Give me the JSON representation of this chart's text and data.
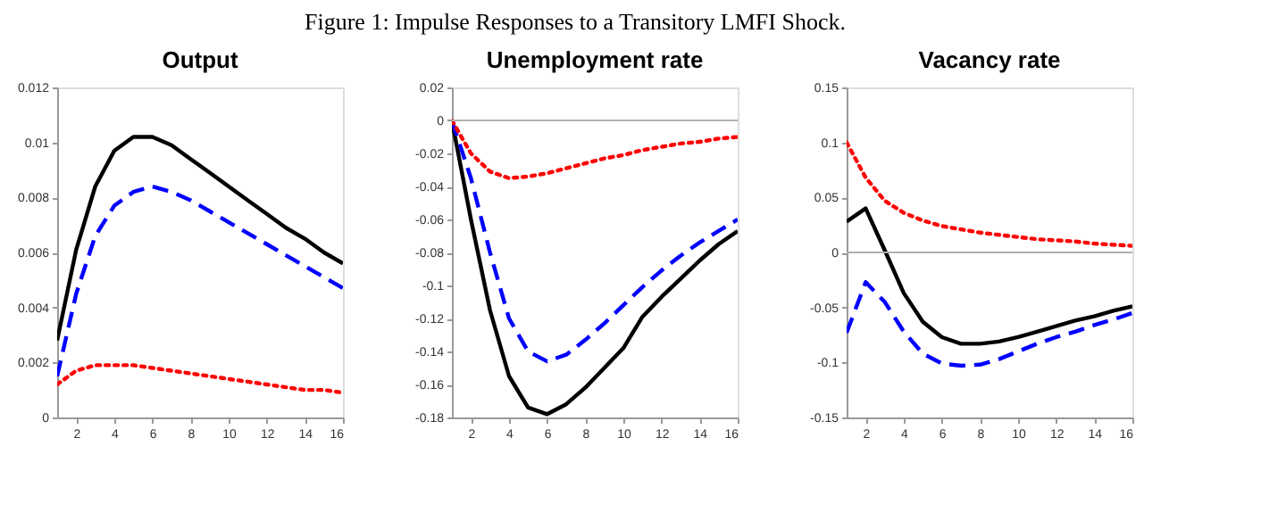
{
  "chart_data": [
    {
      "type": "line",
      "title": "Output",
      "annotations": [
        "Figure 1: Impulse Responses to a Transitory LMFI Shock."
      ],
      "x": [
        1,
        2,
        3,
        4,
        5,
        6,
        7,
        8,
        9,
        10,
        11,
        12,
        13,
        14,
        15,
        16
      ],
      "xlim": [
        1,
        16
      ],
      "xticks": [
        2,
        4,
        6,
        8,
        10,
        12,
        14,
        16
      ],
      "ylim": [
        0,
        0.012
      ],
      "yticks": [
        0,
        0.002,
        0.004,
        0.006,
        0.008,
        0.01,
        0.012
      ],
      "series": [
        {
          "color": "#000000",
          "line_style": "solid",
          "values": [
            0.0028,
            0.0061,
            0.0084,
            0.0097,
            0.0102,
            0.0102,
            0.0099,
            0.0094,
            0.0089,
            0.0084,
            0.0079,
            0.0074,
            0.0069,
            0.0065,
            0.006,
            0.0056
          ]
        },
        {
          "color": "#0000ff",
          "line_style": "dashed",
          "values": [
            0.0015,
            0.0045,
            0.0066,
            0.0077,
            0.0082,
            0.0084,
            0.0082,
            0.0079,
            0.0075,
            0.0071,
            0.0067,
            0.0063,
            0.0059,
            0.0055,
            0.0051,
            0.0047
          ]
        },
        {
          "color": "#ff0000",
          "line_style": "dotted",
          "values": [
            0.0012,
            0.0017,
            0.0019,
            0.0019,
            0.0019,
            0.0018,
            0.0017,
            0.0016,
            0.0015,
            0.0014,
            0.0013,
            0.0012,
            0.0011,
            0.001,
            0.001,
            0.0009
          ]
        }
      ]
    },
    {
      "type": "line",
      "title": "Unemployment rate",
      "x": [
        1,
        2,
        3,
        4,
        5,
        6,
        7,
        8,
        9,
        10,
        11,
        12,
        13,
        14,
        15,
        16
      ],
      "xlim": [
        1,
        16
      ],
      "xticks": [
        2,
        4,
        6,
        8,
        10,
        12,
        14,
        16
      ],
      "ylim": [
        -0.18,
        0.02
      ],
      "yticks": [
        -0.18,
        -0.16,
        -0.14,
        -0.12,
        -0.1,
        -0.08,
        -0.06,
        -0.04,
        -0.02,
        0,
        0.02
      ],
      "ref_lines": [
        {
          "axis": "y",
          "value": 0,
          "color": "#b0b0b0"
        }
      ],
      "series": [
        {
          "color": "#000000",
          "line_style": "solid",
          "values": [
            0,
            -0.06,
            -0.115,
            -0.155,
            -0.174,
            -0.178,
            -0.172,
            -0.162,
            -0.15,
            -0.138,
            -0.119,
            -0.107,
            -0.096,
            -0.085,
            -0.075,
            -0.067
          ]
        },
        {
          "color": "#0000ff",
          "line_style": "dashed",
          "values": [
            0,
            -0.035,
            -0.08,
            -0.12,
            -0.14,
            -0.146,
            -0.142,
            -0.133,
            -0.123,
            -0.112,
            -0.101,
            -0.091,
            -0.082,
            -0.074,
            -0.067,
            -0.06
          ]
        },
        {
          "color": "#ff0000",
          "line_style": "dotted",
          "values": [
            0,
            -0.02,
            -0.031,
            -0.035,
            -0.034,
            -0.032,
            -0.029,
            -0.026,
            -0.023,
            -0.021,
            -0.018,
            -0.016,
            -0.014,
            -0.013,
            -0.011,
            -0.01
          ]
        }
      ]
    },
    {
      "type": "line",
      "title": "Vacancy rate",
      "x": [
        1,
        2,
        3,
        4,
        5,
        6,
        7,
        8,
        9,
        10,
        11,
        12,
        13,
        14,
        15,
        16
      ],
      "xlim": [
        1,
        16
      ],
      "xticks": [
        2,
        4,
        6,
        8,
        10,
        12,
        14,
        16
      ],
      "ylim": [
        -0.15,
        0.15
      ],
      "yticks": [
        -0.15,
        -0.1,
        -0.05,
        0,
        0.05,
        0.1,
        0.15
      ],
      "ref_lines": [
        {
          "axis": "y",
          "value": 0,
          "color": "#b0b0b0"
        }
      ],
      "series": [
        {
          "color": "#000000",
          "line_style": "solid",
          "values": [
            0.028,
            0.04,
            0.002,
            -0.037,
            -0.063,
            -0.077,
            -0.083,
            -0.083,
            -0.081,
            -0.077,
            -0.072,
            -0.067,
            -0.062,
            -0.058,
            -0.053,
            -0.049
          ]
        },
        {
          "color": "#0000ff",
          "line_style": "dashed",
          "values": [
            -0.073,
            -0.027,
            -0.045,
            -0.072,
            -0.092,
            -0.101,
            -0.103,
            -0.102,
            -0.097,
            -0.09,
            -0.083,
            -0.077,
            -0.072,
            -0.066,
            -0.061,
            -0.055
          ]
        },
        {
          "color": "#ff0000",
          "line_style": "dotted",
          "values": [
            0.1,
            0.068,
            0.047,
            0.036,
            0.029,
            0.024,
            0.021,
            0.018,
            0.016,
            0.014,
            0.012,
            0.011,
            0.01,
            0.008,
            0.007,
            0.006
          ]
        }
      ]
    }
  ]
}
